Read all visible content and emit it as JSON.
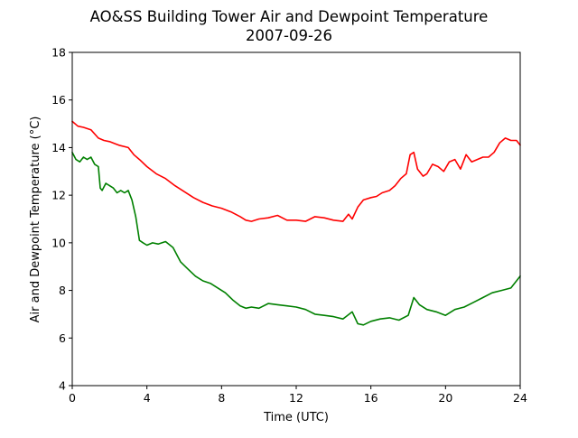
{
  "chart_data": {
    "type": "line",
    "title": "AO&SS Building Tower Air and Dewpoint Temperature",
    "subtitle": "2007-09-26",
    "xlabel": "Time (UTC)",
    "ylabel": "Air and Dewpoint Temperature (°C)",
    "xlim": [
      0,
      24
    ],
    "ylim": [
      4,
      18
    ],
    "xticks": [
      0,
      4,
      8,
      12,
      16,
      20,
      24
    ],
    "yticks": [
      4,
      6,
      8,
      10,
      12,
      14,
      16,
      18
    ],
    "grid": false,
    "legend": "none",
    "series": [
      {
        "color": "#ff0000",
        "x": [
          0,
          0.3,
          0.6,
          1.0,
          1.4,
          1.7,
          2.0,
          2.5,
          3.0,
          3.3,
          3.6,
          4.0,
          4.5,
          5.0,
          5.5,
          6.0,
          6.5,
          7.0,
          7.5,
          8.0,
          8.5,
          9.0,
          9.3,
          9.6,
          10.0,
          10.5,
          11.0,
          11.5,
          12.0,
          12.5,
          13.0,
          13.5,
          14.0,
          14.5,
          14.8,
          15.0,
          15.3,
          15.6,
          16.0,
          16.3,
          16.6,
          17.0,
          17.3,
          17.6,
          17.9,
          18.1,
          18.3,
          18.5,
          18.8,
          19.0,
          19.3,
          19.6,
          19.9,
          20.2,
          20.5,
          20.8,
          21.1,
          21.4,
          21.7,
          22.0,
          22.3,
          22.6,
          22.9,
          23.2,
          23.5,
          23.8,
          24.0
        ],
        "y": [
          15.1,
          14.9,
          14.85,
          14.75,
          14.4,
          14.3,
          14.25,
          14.1,
          14.0,
          13.7,
          13.5,
          13.2,
          12.9,
          12.7,
          12.4,
          12.15,
          11.9,
          11.7,
          11.55,
          11.45,
          11.3,
          11.1,
          10.95,
          10.9,
          11.0,
          11.05,
          11.15,
          10.95,
          10.95,
          10.9,
          11.1,
          11.05,
          10.95,
          10.9,
          11.2,
          11.0,
          11.5,
          11.8,
          11.9,
          11.95,
          12.1,
          12.2,
          12.4,
          12.7,
          12.9,
          13.7,
          13.8,
          13.1,
          12.8,
          12.9,
          13.3,
          13.2,
          13.0,
          13.4,
          13.5,
          13.1,
          13.7,
          13.4,
          13.5,
          13.6,
          13.6,
          13.8,
          14.2,
          14.4,
          14.3,
          14.3,
          14.1
        ]
      },
      {
        "color": "#008000",
        "x": [
          0,
          0.2,
          0.4,
          0.6,
          0.8,
          1.0,
          1.2,
          1.4,
          1.5,
          1.6,
          1.8,
          2.0,
          2.2,
          2.4,
          2.6,
          2.8,
          3.0,
          3.2,
          3.4,
          3.6,
          3.8,
          4.0,
          4.3,
          4.6,
          5.0,
          5.4,
          5.8,
          6.2,
          6.6,
          7.0,
          7.4,
          7.8,
          8.2,
          8.6,
          9.0,
          9.3,
          9.6,
          10.0,
          10.5,
          11.0,
          11.5,
          12.0,
          12.5,
          13.0,
          13.5,
          14.0,
          14.5,
          15.0,
          15.3,
          15.6,
          16.0,
          16.5,
          17.0,
          17.5,
          18.0,
          18.3,
          18.6,
          19.0,
          19.5,
          20.0,
          20.5,
          21.0,
          21.5,
          22.0,
          22.5,
          23.0,
          23.5,
          23.8,
          24.0
        ],
        "y": [
          13.8,
          13.5,
          13.4,
          13.6,
          13.5,
          13.6,
          13.3,
          13.2,
          12.3,
          12.2,
          12.5,
          12.4,
          12.3,
          12.1,
          12.2,
          12.1,
          12.2,
          11.8,
          11.1,
          10.1,
          10.0,
          9.9,
          10.0,
          9.95,
          10.05,
          9.8,
          9.2,
          8.9,
          8.6,
          8.4,
          8.3,
          8.1,
          7.9,
          7.6,
          7.35,
          7.25,
          7.3,
          7.25,
          7.45,
          7.4,
          7.35,
          7.3,
          7.2,
          7.0,
          6.95,
          6.9,
          6.8,
          7.1,
          6.6,
          6.55,
          6.7,
          6.8,
          6.85,
          6.75,
          6.95,
          7.7,
          7.4,
          7.2,
          7.1,
          6.95,
          7.2,
          7.3,
          7.5,
          7.7,
          7.9,
          8.0,
          8.1,
          8.4,
          8.6
        ]
      }
    ]
  }
}
